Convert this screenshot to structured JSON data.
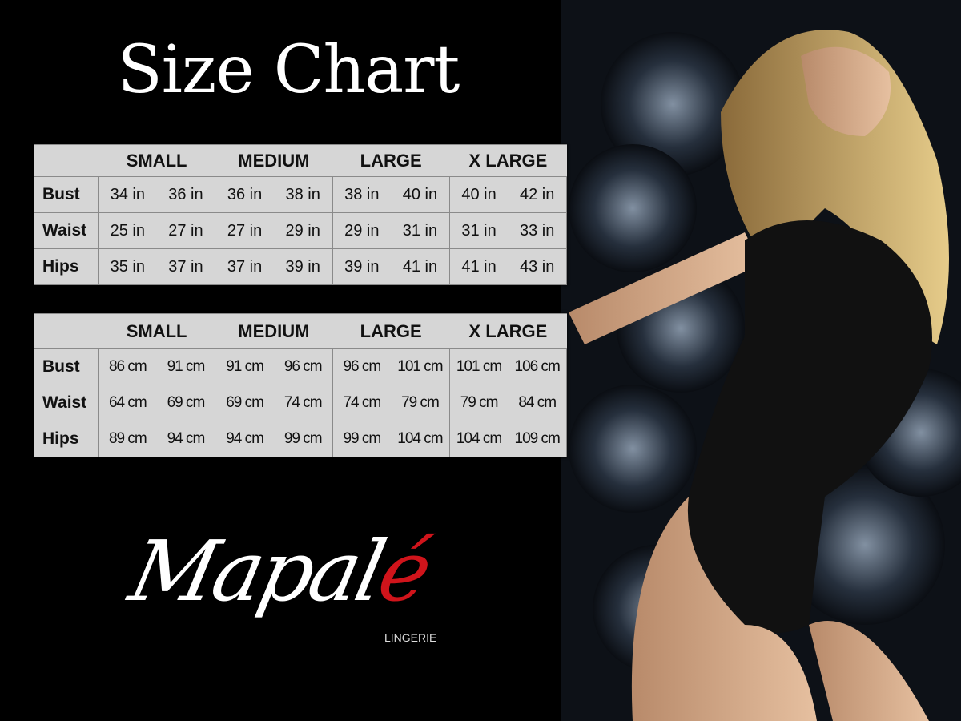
{
  "title": "Size Chart",
  "inch_table": {
    "headers": [
      "",
      "SMALL",
      "MEDIUM",
      "LARGE",
      "X LARGE"
    ],
    "rows": [
      {
        "label": "Bust",
        "values": [
          [
            "34 in",
            "36 in"
          ],
          [
            "36 in",
            "38 in"
          ],
          [
            "38 in",
            "40 in"
          ],
          [
            "40 in",
            "42 in"
          ]
        ]
      },
      {
        "label": "Waist",
        "values": [
          [
            "25 in",
            "27 in"
          ],
          [
            "27 in",
            "29 in"
          ],
          [
            "29 in",
            "31 in"
          ],
          [
            "31 in",
            "33 in"
          ]
        ]
      },
      {
        "label": "Hips",
        "values": [
          [
            "35 in",
            "37 in"
          ],
          [
            "37 in",
            "39 in"
          ],
          [
            "39 in",
            "41 in"
          ],
          [
            "41 in",
            "43 in"
          ]
        ]
      }
    ]
  },
  "cm_table": {
    "headers": [
      "",
      "SMALL",
      "MEDIUM",
      "LARGE",
      "X LARGE"
    ],
    "rows": [
      {
        "label": "Bust",
        "values": [
          [
            "86 cm",
            "91 cm"
          ],
          [
            "91 cm",
            "96 cm"
          ],
          [
            "96 cm",
            "101 cm"
          ],
          [
            "101 cm",
            "106 cm"
          ]
        ]
      },
      {
        "label": "Waist",
        "values": [
          [
            "64 cm",
            "69 cm"
          ],
          [
            "69 cm",
            "74 cm"
          ],
          [
            "74 cm",
            "79 cm"
          ],
          [
            "79 cm",
            "84 cm"
          ]
        ]
      },
      {
        "label": "Hips",
        "values": [
          [
            "89 cm",
            "94 cm"
          ],
          [
            "94 cm",
            "99 cm"
          ],
          [
            "99 cm",
            "104 cm"
          ],
          [
            "104 cm",
            "109 cm"
          ]
        ]
      }
    ]
  },
  "logo": {
    "name_main": "Mapal",
    "name_accent": "é",
    "tagline": "LINGERIE",
    "accent_color": "#d0141b"
  },
  "colors": {
    "background": "#000000",
    "table_bg": "#d6d6d6"
  }
}
